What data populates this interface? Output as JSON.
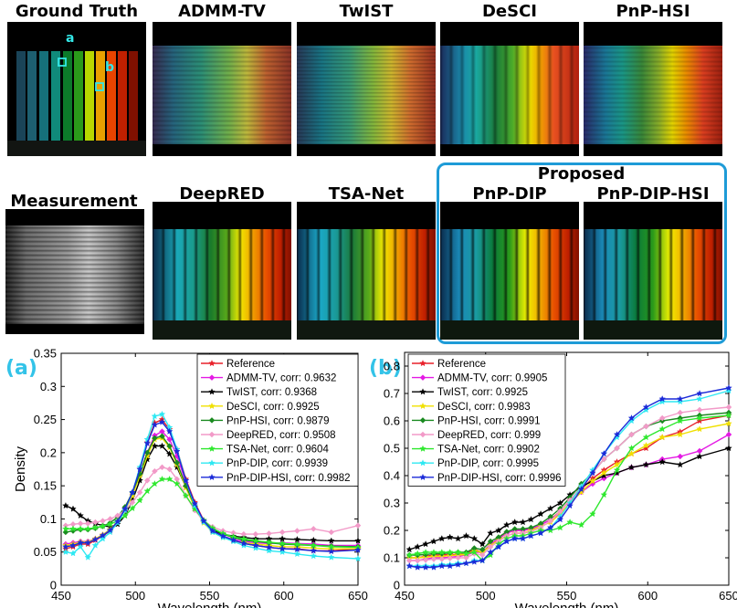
{
  "panels": {
    "ground_truth": "Ground Truth",
    "admm_tv": "ADMM-TV",
    "twist": "TwIST",
    "desci": "DeSCI",
    "pnp_hsi": "PnP-HSI",
    "measurement": "Measurement",
    "deepred": "DeepRED",
    "tsa_net": "TSA-Net",
    "proposed": "Proposed",
    "pnp_dip": "PnP-DIP",
    "pnp_dip_hsi": "PnP-DIP-HSI",
    "marker_a": "a",
    "marker_b": "b"
  },
  "plot_labels": {
    "a": "(a)",
    "b": "(b)"
  },
  "colors": {
    "accent": "#33c3e8",
    "proposed_box": "#1e9bd7"
  },
  "chart_data": [
    {
      "id": "a",
      "type": "line",
      "xlabel": "Wavelength (nm)",
      "ylabel": "Density",
      "xlim": [
        450,
        650
      ],
      "ylim": [
        0,
        0.35
      ],
      "xticks": [
        450,
        500,
        550,
        600,
        650
      ],
      "yticks": [
        0,
        0.05,
        0.1,
        0.15,
        0.2,
        0.25,
        0.3,
        0.35
      ],
      "ytick_labels": [
        "0",
        "0.05",
        "0.1",
        "0.15",
        "0.2",
        "0.25",
        "0.3",
        "0.35"
      ],
      "legend_position": "top-right",
      "x": [
        453,
        458,
        463,
        468,
        473,
        478,
        483,
        488,
        493,
        498,
        503,
        508,
        513,
        518,
        523,
        528,
        534,
        540,
        546,
        552,
        559,
        566,
        573,
        581,
        590,
        599,
        609,
        620,
        632,
        650
      ],
      "series": [
        {
          "name": "Reference",
          "legend": "Reference",
          "color": "#e8202a",
          "marker": "star",
          "values": [
            0.055,
            0.058,
            0.062,
            0.062,
            0.068,
            0.074,
            0.082,
            0.095,
            0.115,
            0.14,
            0.175,
            0.215,
            0.245,
            0.25,
            0.235,
            0.205,
            0.16,
            0.125,
            0.098,
            0.082,
            0.074,
            0.068,
            0.063,
            0.06,
            0.057,
            0.055,
            0.055,
            0.052,
            0.052,
            0.055
          ]
        },
        {
          "name": "ADMM-TV",
          "legend": "ADMM-TV, corr: 0.9632",
          "color": "#e41ae4",
          "marker": "diamond",
          "values": [
            0.062,
            0.064,
            0.066,
            0.066,
            0.07,
            0.076,
            0.084,
            0.096,
            0.113,
            0.137,
            0.167,
            0.2,
            0.226,
            0.232,
            0.22,
            0.195,
            0.155,
            0.122,
            0.097,
            0.083,
            0.074,
            0.069,
            0.066,
            0.064,
            0.063,
            0.064,
            0.063,
            0.062,
            0.06,
            0.06
          ]
        },
        {
          "name": "TwIST",
          "legend": "TwIST, corr: 0.9368",
          "color": "#000000",
          "marker": "star",
          "values": [
            0.12,
            0.115,
            0.105,
            0.097,
            0.093,
            0.09,
            0.088,
            0.092,
            0.105,
            0.128,
            0.158,
            0.19,
            0.21,
            0.21,
            0.198,
            0.178,
            0.148,
            0.118,
            0.096,
            0.083,
            0.077,
            0.074,
            0.072,
            0.07,
            0.07,
            0.07,
            0.069,
            0.068,
            0.067,
            0.067
          ]
        },
        {
          "name": "DeSCI",
          "legend": "DeSCI, corr: 0.9925",
          "color": "#f0e000",
          "marker": "star",
          "values": [
            0.06,
            0.062,
            0.065,
            0.065,
            0.07,
            0.076,
            0.084,
            0.096,
            0.113,
            0.135,
            0.165,
            0.195,
            0.22,
            0.222,
            0.208,
            0.182,
            0.147,
            0.117,
            0.094,
            0.08,
            0.072,
            0.067,
            0.064,
            0.062,
            0.06,
            0.058,
            0.058,
            0.056,
            0.055,
            0.055
          ]
        },
        {
          "name": "PnP-HSI",
          "legend": "PnP-HSI, corr: 0.9879",
          "color": "#1a8a20",
          "marker": "diamond",
          "values": [
            0.08,
            0.082,
            0.084,
            0.084,
            0.086,
            0.089,
            0.094,
            0.103,
            0.118,
            0.14,
            0.168,
            0.2,
            0.222,
            0.225,
            0.21,
            0.185,
            0.15,
            0.12,
            0.097,
            0.085,
            0.077,
            0.072,
            0.068,
            0.066,
            0.064,
            0.062,
            0.061,
            0.06,
            0.059,
            0.058
          ]
        },
        {
          "name": "DeepRED",
          "legend": "DeepRED, corr: 0.9508",
          "color": "#f29ac8",
          "marker": "diamond",
          "values": [
            0.09,
            0.092,
            0.093,
            0.093,
            0.095,
            0.097,
            0.1,
            0.105,
            0.113,
            0.125,
            0.14,
            0.158,
            0.172,
            0.178,
            0.175,
            0.16,
            0.135,
            0.113,
            0.097,
            0.088,
            0.082,
            0.079,
            0.077,
            0.077,
            0.078,
            0.08,
            0.082,
            0.085,
            0.08,
            0.09
          ]
        },
        {
          "name": "TSA-Net",
          "legend": "TSA-Net, corr: 0.9604",
          "color": "#2ee82e",
          "marker": "star",
          "values": [
            0.085,
            0.085,
            0.085,
            0.085,
            0.087,
            0.089,
            0.092,
            0.097,
            0.105,
            0.116,
            0.128,
            0.142,
            0.153,
            0.16,
            0.16,
            0.153,
            0.135,
            0.115,
            0.098,
            0.086,
            0.078,
            0.073,
            0.07,
            0.067,
            0.065,
            0.063,
            0.062,
            0.06,
            0.058,
            0.057
          ]
        },
        {
          "name": "PnP-DIP",
          "legend": "PnP-DIP, corr: 0.9939",
          "color": "#2ee8f2",
          "marker": "star",
          "values": [
            0.05,
            0.048,
            0.058,
            0.042,
            0.06,
            0.07,
            0.08,
            0.094,
            0.113,
            0.14,
            0.178,
            0.22,
            0.255,
            0.258,
            0.238,
            0.205,
            0.158,
            0.12,
            0.095,
            0.08,
            0.072,
            0.066,
            0.06,
            0.056,
            0.052,
            0.05,
            0.047,
            0.044,
            0.042,
            0.04
          ]
        },
        {
          "name": "PnP-DIP-HSI",
          "legend": "PnP-DIP-HSI, corr: 0.9982",
          "color": "#1a2ad8",
          "marker": "star",
          "values": [
            0.058,
            0.06,
            0.064,
            0.064,
            0.069,
            0.075,
            0.083,
            0.096,
            0.115,
            0.14,
            0.175,
            0.214,
            0.242,
            0.246,
            0.232,
            0.202,
            0.158,
            0.123,
            0.097,
            0.082,
            0.074,
            0.068,
            0.063,
            0.06,
            0.057,
            0.055,
            0.054,
            0.052,
            0.051,
            0.053
          ]
        }
      ]
    },
    {
      "id": "b",
      "type": "line",
      "xlabel": "Wavelength (nm)",
      "ylabel": "",
      "xlim": [
        450,
        650
      ],
      "ylim": [
        0,
        0.85
      ],
      "xticks": [
        450,
        500,
        550,
        600,
        650
      ],
      "yticks": [
        0,
        0.1,
        0.2,
        0.3,
        0.4,
        0.5,
        0.6,
        0.7,
        0.8
      ],
      "ytick_labels": [
        "0",
        "0.1",
        "0.2",
        "0.3",
        "0.4",
        "0.5",
        "0.6",
        "0.7",
        "0.8"
      ],
      "legend_position": "top-left",
      "x": [
        453,
        458,
        463,
        468,
        473,
        478,
        483,
        488,
        493,
        498,
        503,
        508,
        513,
        518,
        523,
        528,
        534,
        540,
        546,
        552,
        559,
        566,
        573,
        581,
        590,
        599,
        609,
        620,
        632,
        650
      ],
      "series": [
        {
          "name": "Reference",
          "legend": "Reference",
          "color": "#e8202a",
          "marker": "star",
          "values": [
            0.1,
            0.1,
            0.105,
            0.11,
            0.11,
            0.112,
            0.112,
            0.115,
            0.13,
            0.12,
            0.15,
            0.17,
            0.19,
            0.2,
            0.2,
            0.205,
            0.22,
            0.24,
            0.27,
            0.31,
            0.35,
            0.39,
            0.42,
            0.45,
            0.48,
            0.5,
            0.54,
            0.56,
            0.6,
            0.62
          ]
        },
        {
          "name": "ADMM-TV",
          "legend": "ADMM-TV, corr: 0.9905",
          "color": "#e41ae4",
          "marker": "diamond",
          "values": [
            0.09,
            0.09,
            0.095,
            0.1,
            0.1,
            0.102,
            0.105,
            0.11,
            0.12,
            0.12,
            0.15,
            0.17,
            0.19,
            0.2,
            0.2,
            0.205,
            0.22,
            0.24,
            0.26,
            0.3,
            0.34,
            0.37,
            0.39,
            0.41,
            0.43,
            0.44,
            0.46,
            0.47,
            0.49,
            0.55
          ]
        },
        {
          "name": "TwIST",
          "legend": "TwIST, corr: 0.9925",
          "color": "#000000",
          "marker": "star",
          "values": [
            0.13,
            0.14,
            0.15,
            0.16,
            0.17,
            0.175,
            0.17,
            0.18,
            0.17,
            0.15,
            0.19,
            0.2,
            0.22,
            0.23,
            0.23,
            0.24,
            0.26,
            0.28,
            0.3,
            0.33,
            0.36,
            0.38,
            0.4,
            0.41,
            0.43,
            0.44,
            0.45,
            0.44,
            0.47,
            0.5
          ]
        },
        {
          "name": "DeSCI",
          "legend": "DeSCI, corr: 0.9983",
          "color": "#f0e000",
          "marker": "star",
          "values": [
            0.1,
            0.1,
            0.102,
            0.105,
            0.105,
            0.108,
            0.11,
            0.112,
            0.125,
            0.12,
            0.145,
            0.165,
            0.18,
            0.19,
            0.19,
            0.2,
            0.215,
            0.23,
            0.26,
            0.3,
            0.34,
            0.38,
            0.41,
            0.44,
            0.48,
            0.51,
            0.54,
            0.55,
            0.57,
            0.59
          ]
        },
        {
          "name": "PnP-HSI",
          "legend": "PnP-HSI, corr: 0.9991",
          "color": "#1a8a20",
          "marker": "diamond",
          "values": [
            0.11,
            0.11,
            0.112,
            0.115,
            0.115,
            0.118,
            0.12,
            0.12,
            0.135,
            0.13,
            0.16,
            0.175,
            0.195,
            0.205,
            0.205,
            0.21,
            0.225,
            0.25,
            0.28,
            0.32,
            0.37,
            0.41,
            0.46,
            0.5,
            0.55,
            0.58,
            0.6,
            0.61,
            0.62,
            0.63
          ]
        },
        {
          "name": "DeepRED",
          "legend": "DeepRED, corr: 0.999",
          "color": "#f29ac8",
          "marker": "diamond",
          "values": [
            0.09,
            0.09,
            0.092,
            0.095,
            0.095,
            0.098,
            0.1,
            0.1,
            0.115,
            0.11,
            0.14,
            0.16,
            0.18,
            0.19,
            0.19,
            0.195,
            0.21,
            0.235,
            0.27,
            0.31,
            0.36,
            0.41,
            0.46,
            0.5,
            0.55,
            0.58,
            0.61,
            0.63,
            0.64,
            0.65
          ]
        },
        {
          "name": "TSA-Net",
          "legend": "TSA-Net, corr: 0.9902",
          "color": "#2ee82e",
          "marker": "star",
          "values": [
            0.11,
            0.115,
            0.12,
            0.12,
            0.12,
            0.12,
            0.12,
            0.115,
            0.12,
            0.09,
            0.11,
            0.15,
            0.17,
            0.18,
            0.18,
            0.19,
            0.2,
            0.2,
            0.21,
            0.23,
            0.22,
            0.26,
            0.33,
            0.42,
            0.5,
            0.54,
            0.57,
            0.6,
            0.61,
            0.62
          ]
        },
        {
          "name": "PnP-DIP",
          "legend": "PnP-DIP, corr: 0.9995",
          "color": "#2ee8f2",
          "marker": "star",
          "values": [
            0.07,
            0.07,
            0.07,
            0.07,
            0.075,
            0.075,
            0.08,
            0.08,
            0.09,
            0.09,
            0.12,
            0.14,
            0.16,
            0.17,
            0.17,
            0.18,
            0.19,
            0.21,
            0.25,
            0.3,
            0.36,
            0.42,
            0.48,
            0.54,
            0.6,
            0.64,
            0.67,
            0.67,
            0.68,
            0.71
          ]
        },
        {
          "name": "PnP-DIP-HSI",
          "legend": "PnP-DIP-HSI, corr: 0.9996",
          "color": "#1a2ad8",
          "marker": "star",
          "values": [
            0.07,
            0.065,
            0.065,
            0.065,
            0.07,
            0.07,
            0.075,
            0.08,
            0.085,
            0.09,
            0.12,
            0.14,
            0.16,
            0.17,
            0.17,
            0.18,
            0.19,
            0.21,
            0.24,
            0.29,
            0.35,
            0.41,
            0.48,
            0.55,
            0.61,
            0.65,
            0.68,
            0.68,
            0.7,
            0.72
          ]
        }
      ]
    }
  ]
}
